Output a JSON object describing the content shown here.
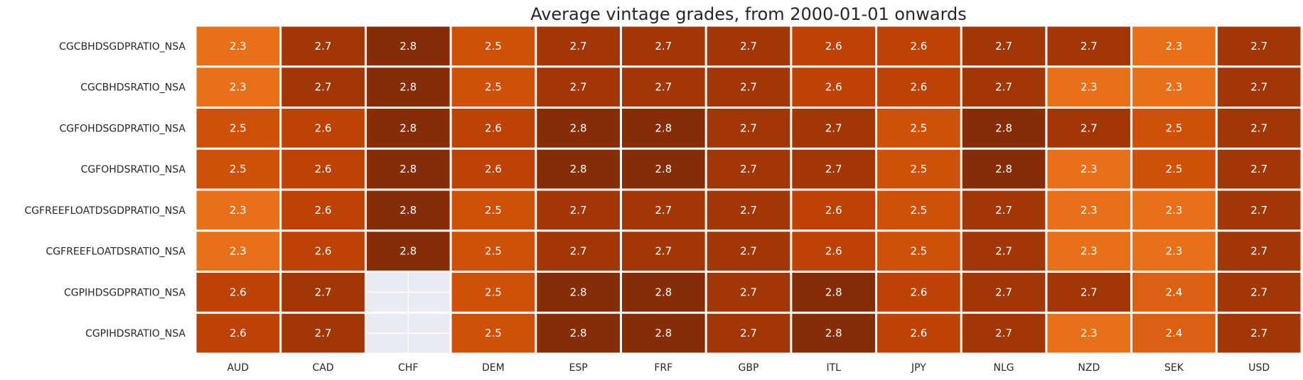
{
  "chart_data": {
    "type": "heatmap",
    "title": "Average vintage grades, from 2000-01-01 onwards",
    "xlabel": "",
    "ylabel": "",
    "columns": [
      "AUD",
      "CAD",
      "CHF",
      "DEM",
      "ESP",
      "FRF",
      "GBP",
      "ITL",
      "JPY",
      "NLG",
      "NZD",
      "SEK",
      "USD"
    ],
    "rows": [
      "CGCBHDSGDPRATIO_NSA",
      "CGCBHDSRATIO_NSA",
      "CGFOHDSGDPRATIO_NSA",
      "CGFOHDSRATIO_NSA",
      "CGFREEFLOATDSGDPRATIO_NSA",
      "CGFREEFLOATDSRATIO_NSA",
      "CGPIHDSGDPRATIO_NSA",
      "CGPIHDSRATIO_NSA"
    ],
    "values": [
      [
        2.3,
        2.7,
        2.8,
        2.5,
        2.7,
        2.7,
        2.7,
        2.6,
        2.6,
        2.7,
        2.7,
        2.3,
        2.7
      ],
      [
        2.3,
        2.7,
        2.8,
        2.5,
        2.7,
        2.7,
        2.7,
        2.6,
        2.6,
        2.7,
        2.3,
        2.3,
        2.7
      ],
      [
        2.5,
        2.6,
        2.8,
        2.6,
        2.8,
        2.8,
        2.7,
        2.7,
        2.5,
        2.8,
        2.7,
        2.5,
        2.7
      ],
      [
        2.5,
        2.6,
        2.8,
        2.6,
        2.8,
        2.8,
        2.7,
        2.7,
        2.5,
        2.8,
        2.3,
        2.5,
        2.7
      ],
      [
        2.3,
        2.6,
        2.8,
        2.5,
        2.7,
        2.7,
        2.7,
        2.6,
        2.5,
        2.7,
        2.3,
        2.3,
        2.7
      ],
      [
        2.3,
        2.6,
        2.8,
        2.5,
        2.7,
        2.7,
        2.7,
        2.6,
        2.5,
        2.7,
        2.3,
        2.3,
        2.7
      ],
      [
        2.6,
        2.7,
        null,
        2.5,
        2.8,
        2.8,
        2.7,
        2.8,
        2.6,
        2.7,
        2.7,
        2.4,
        2.7
      ],
      [
        2.6,
        2.7,
        null,
        2.5,
        2.8,
        2.8,
        2.7,
        2.8,
        2.6,
        2.7,
        2.3,
        2.4,
        2.7
      ]
    ],
    "value_range": [
      2.3,
      2.8
    ],
    "colorbar": false,
    "colors": {
      "low": "#e8701a",
      "high": "#862c07",
      "missing": "#eaeaf2",
      "grid": "#ffffff",
      "cell_text": "#ffffff",
      "label_text": "#262626"
    }
  }
}
